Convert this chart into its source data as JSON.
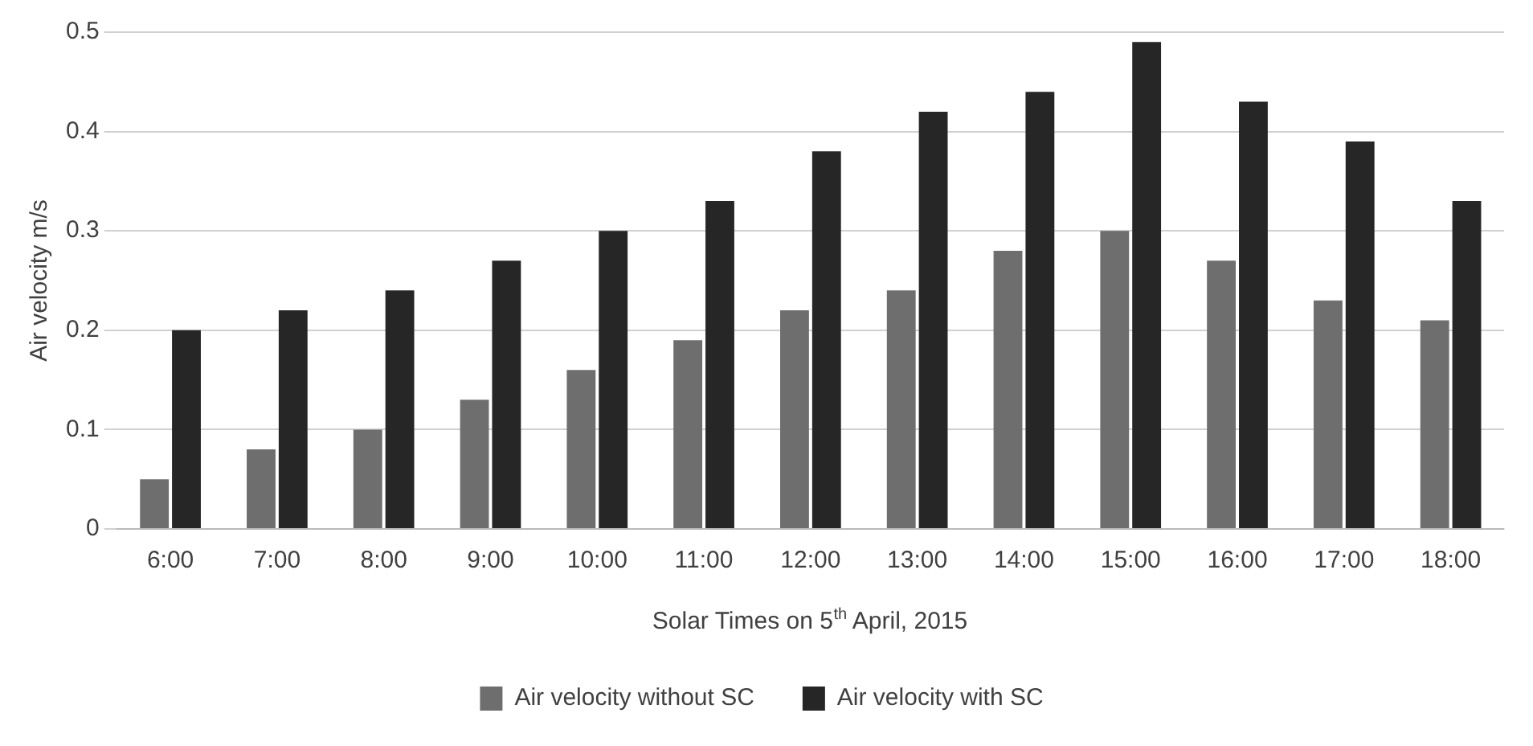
{
  "chart_data": {
    "type": "bar",
    "xlabel": "Solar Times on 5$^{th}$ April, 2015",
    "ylabel": "Air velocity m/s",
    "categories": [
      "6:00",
      "7:00",
      "8:00",
      "9:00",
      "10:00",
      "11:00",
      "12:00",
      "13:00",
      "14:00",
      "15:00",
      "16:00",
      "17:00",
      "18:00"
    ],
    "series": [
      {
        "name": "Air velocity without SC",
        "color": "#6e6e6e",
        "values": [
          0.05,
          0.08,
          0.1,
          0.13,
          0.16,
          0.19,
          0.22,
          0.24,
          0.28,
          0.3,
          0.27,
          0.23,
          0.21
        ]
      },
      {
        "name": "Air velocity with SC",
        "color": "#262626",
        "values": [
          0.2,
          0.22,
          0.24,
          0.27,
          0.3,
          0.33,
          0.38,
          0.42,
          0.44,
          0.49,
          0.43,
          0.39,
          0.33
        ]
      }
    ],
    "ylim": [
      0,
      0.5
    ],
    "yticks": [
      0,
      0.1,
      0.2,
      0.3,
      0.4,
      0.5
    ],
    "grid": "y",
    "legend": "bottom"
  }
}
